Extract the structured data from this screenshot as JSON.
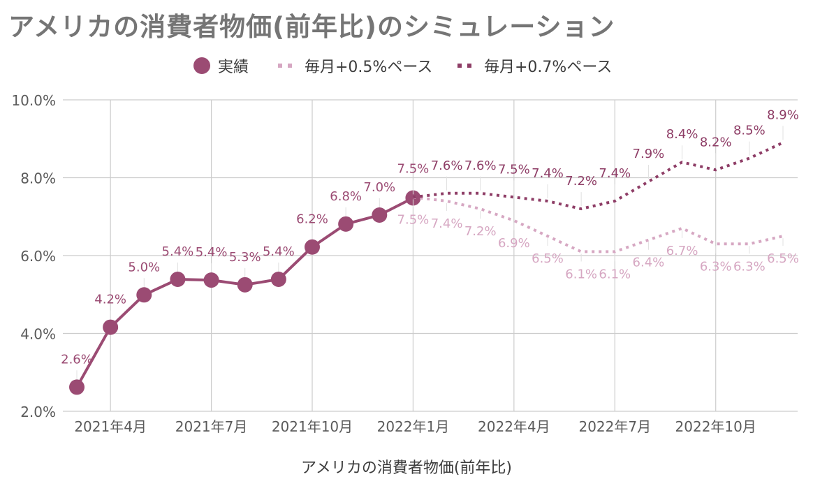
{
  "title": "アメリカの消費者物価(前年比)のシミュレーション",
  "colors": {
    "actual": "#9b4b73",
    "sim05": "#d6a7c2",
    "sim07": "#8e3d66",
    "grid": "#cccccc",
    "axis_text": "#5a5a5a"
  },
  "chart_data": {
    "type": "line",
    "title": "アメリカの消費者物価(前年比)のシミュレーション",
    "xlabel": "アメリカの消費者物価(前年比)",
    "ylabel": "",
    "ylim": [
      2.0,
      10.0
    ],
    "y_ticks": [
      "2.0%",
      "4.0%",
      "6.0%",
      "8.0%",
      "10.0%"
    ],
    "y_tick_values": [
      2,
      4,
      6,
      8,
      10
    ],
    "x_months": [
      "2021-03",
      "2021-04",
      "2021-05",
      "2021-06",
      "2021-07",
      "2021-08",
      "2021-09",
      "2021-10",
      "2021-11",
      "2021-12",
      "2022-01",
      "2022-02",
      "2022-03",
      "2022-04",
      "2022-05",
      "2022-06",
      "2022-07",
      "2022-08",
      "2022-09",
      "2022-10",
      "2022-11",
      "2022-12"
    ],
    "x_tick_labels": [
      {
        "month": "2021-04",
        "label": "2021年4月"
      },
      {
        "month": "2021-07",
        "label": "2021年7月"
      },
      {
        "month": "2021-10",
        "label": "2021年10月"
      },
      {
        "month": "2022-01",
        "label": "2022年1月"
      },
      {
        "month": "2022-04",
        "label": "2022年4月"
      },
      {
        "month": "2022-07",
        "label": "2022年7月"
      },
      {
        "month": "2022-10",
        "label": "2022年10月"
      }
    ],
    "grid": true,
    "legend": "top",
    "series": [
      {
        "name": "実績",
        "style": "solid-markers",
        "months": [
          "2021-03",
          "2021-04",
          "2021-05",
          "2021-06",
          "2021-07",
          "2021-08",
          "2021-09",
          "2021-10",
          "2021-11",
          "2021-12",
          "2022-01"
        ],
        "values": [
          2.62,
          4.16,
          4.99,
          5.39,
          5.37,
          5.25,
          5.39,
          6.22,
          6.81,
          7.04,
          7.48
        ],
        "labels": [
          "2.6%",
          "4.2%",
          "5.0%",
          "5.4%",
          "5.4%",
          "5.3%",
          "5.4%",
          "6.2%",
          "6.8%",
          "7.0%",
          "7.5%"
        ]
      },
      {
        "name": "毎月+0.5%ペース",
        "style": "dotted",
        "months": [
          "2022-01",
          "2022-02",
          "2022-03",
          "2022-04",
          "2022-05",
          "2022-06",
          "2022-07",
          "2022-08",
          "2022-09",
          "2022-10",
          "2022-11",
          "2022-12"
        ],
        "values": [
          7.5,
          7.4,
          7.2,
          6.9,
          6.5,
          6.1,
          6.1,
          6.4,
          6.7,
          6.3,
          6.3,
          6.5
        ],
        "labels": [
          "7.5%",
          "7.4%",
          "7.2%",
          "6.9%",
          "6.5%",
          "6.1%",
          "6.1%",
          "6.4%",
          "6.7%",
          "6.3%",
          "6.3%",
          "6.5%"
        ]
      },
      {
        "name": "毎月+0.7%ペース",
        "style": "dotted",
        "months": [
          "2022-01",
          "2022-02",
          "2022-03",
          "2022-04",
          "2022-05",
          "2022-06",
          "2022-07",
          "2022-08",
          "2022-09",
          "2022-10",
          "2022-11",
          "2022-12"
        ],
        "values": [
          7.5,
          7.6,
          7.6,
          7.5,
          7.4,
          7.2,
          7.4,
          7.9,
          8.4,
          8.2,
          8.5,
          8.9
        ],
        "labels": [
          "7.5%",
          "7.6%",
          "7.6%",
          "7.5%",
          "7.4%",
          "7.2%",
          "7.4%",
          "7.9%",
          "8.4%",
          "8.2%",
          "8.5%",
          "8.9%"
        ]
      }
    ]
  }
}
